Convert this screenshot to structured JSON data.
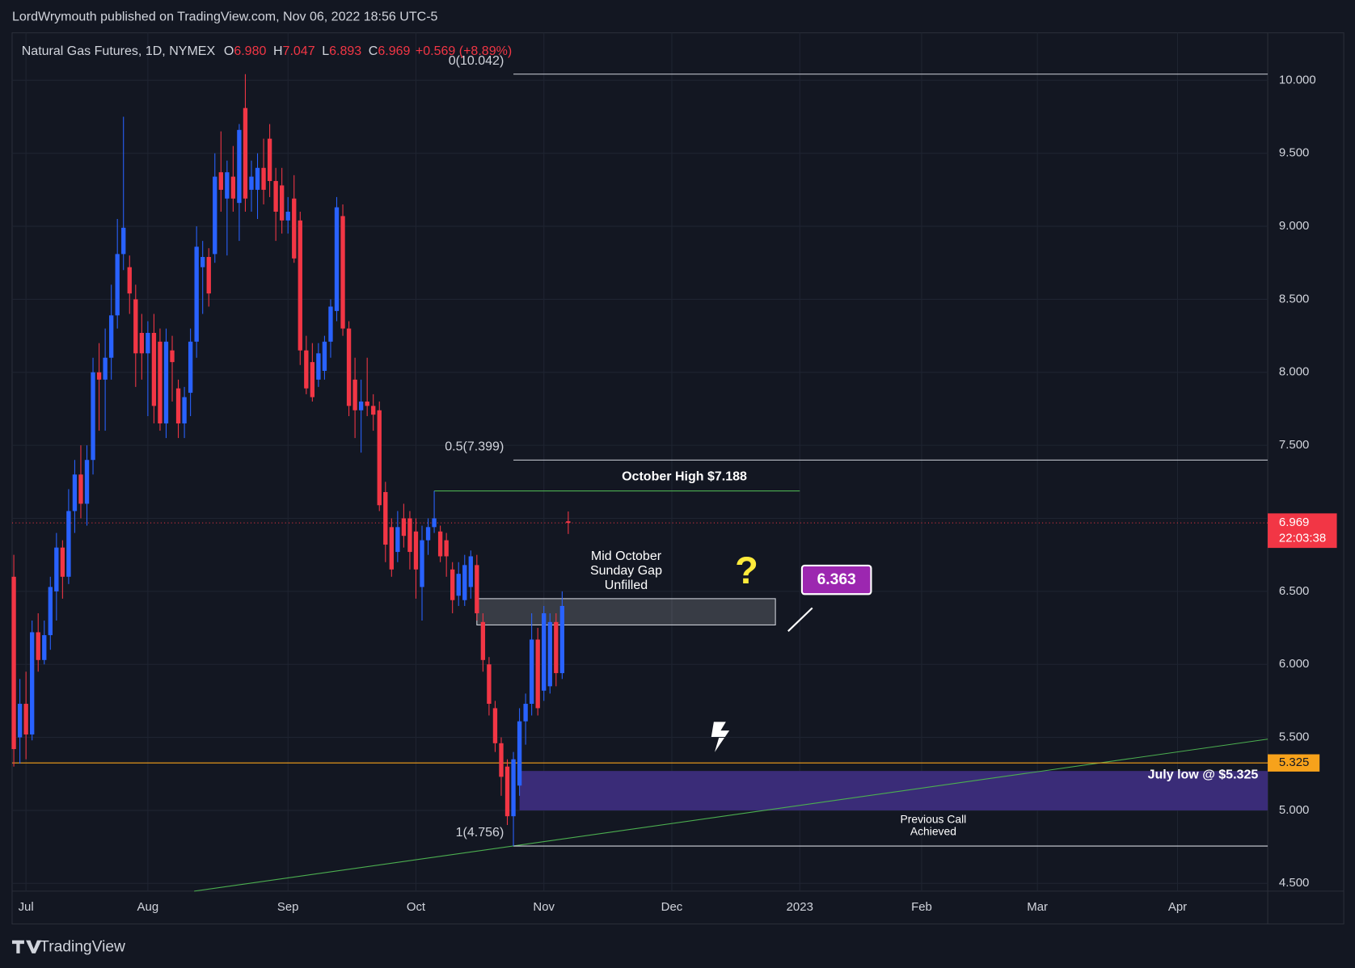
{
  "header": {
    "text": "LordWrymouth published on TradingView.com, Nov 06, 2022 18:56 UTC-5"
  },
  "footer": {
    "brand": "TradingView"
  },
  "chart_data": {
    "type": "candlestick",
    "title": "Natural Gas Futures, 1D, NYMEX",
    "legend_values": [
      {
        "label": "O",
        "value": "6.980"
      },
      {
        "label": "H",
        "value": "7.047"
      },
      {
        "label": "L",
        "value": "6.893"
      },
      {
        "label": "C",
        "value": "6.969"
      }
    ],
    "change": "+0.569 (+8.89%)",
    "open": [
      6.6,
      5.5,
      5.73,
      5.52,
      6.22,
      6.03,
      6.2,
      6.5,
      6.8,
      6.6,
      7.05,
      7.3,
      7.1,
      7.4,
      8.0,
      7.95,
      8.1,
      8.39,
      8.81,
      8.72,
      8.5,
      8.27,
      8.13,
      8.27,
      8.21,
      7.65,
      8.15,
      7.89,
      7.65,
      7.86,
      8.21,
      8.72,
      8.79,
      8.81,
      9.37,
      9.19,
      9.34,
      9.16,
      9.81,
      9.25,
      9.25,
      9.4,
      9.6,
      9.31,
      9.28,
      9.04,
      9.19,
      9.04,
      8.15,
      8.07,
      7.95,
      8.01,
      8.21,
      8.42,
      9.07,
      8.3,
      7.95,
      7.74,
      7.8,
      7.77,
      7.74,
      7.18,
      6.94,
      6.77,
      7.0,
      7.0,
      6.91,
      6.53,
      6.85,
      6.94,
      6.91,
      6.85,
      6.65,
      6.47,
      6.44,
      6.53,
      6.68,
      6.29,
      6.0,
      5.7,
      5.46,
      5.3,
      4.96,
      5.17,
      5.61,
      5.73,
      6.17,
      5.82,
      5.85,
      6.29,
      5.94,
      6.98
    ],
    "high": [
      6.75,
      5.9,
      5.95,
      6.3,
      6.35,
      6.3,
      6.6,
      6.9,
      6.85,
      7.2,
      7.4,
      7.5,
      7.5,
      8.1,
      8.2,
      8.3,
      8.6,
      9.05,
      9.75,
      8.8,
      8.6,
      8.4,
      8.35,
      8.4,
      8.3,
      8.3,
      8.25,
      7.95,
      7.9,
      8.3,
      9.0,
      8.9,
      8.85,
      9.5,
      9.65,
      9.45,
      9.55,
      9.7,
      10.042,
      9.45,
      9.5,
      9.6,
      9.7,
      9.4,
      9.4,
      9.2,
      9.35,
      9.1,
      8.25,
      8.2,
      8.2,
      8.25,
      8.5,
      9.2,
      9.15,
      8.35,
      8.1,
      7.95,
      8.1,
      7.85,
      7.8,
      7.25,
      7.0,
      7.05,
      7.1,
      7.05,
      7.0,
      6.95,
      7.0,
      7.188,
      6.95,
      6.9,
      6.7,
      6.7,
      6.75,
      6.78,
      6.75,
      6.35,
      6.05,
      5.75,
      5.5,
      5.35,
      5.4,
      5.7,
      5.8,
      6.35,
      6.25,
      6.4,
      6.35,
      6.35,
      6.5,
      7.047
    ],
    "low": [
      5.3,
      5.32,
      5.35,
      5.48,
      5.95,
      6.0,
      6.1,
      6.3,
      6.45,
      6.55,
      6.9,
      7.0,
      6.95,
      7.3,
      7.6,
      7.6,
      7.95,
      8.3,
      8.7,
      8.4,
      7.9,
      7.95,
      7.7,
      7.65,
      7.6,
      7.55,
      7.8,
      7.55,
      7.55,
      7.7,
      8.1,
      8.4,
      8.45,
      8.75,
      9.1,
      8.8,
      9.1,
      8.9,
      9.1,
      9.1,
      9.05,
      9.15,
      9.2,
      8.9,
      8.95,
      8.95,
      8.75,
      8.05,
      7.85,
      7.8,
      7.9,
      7.95,
      8.1,
      8.35,
      8.25,
      7.7,
      7.55,
      7.45,
      7.7,
      7.6,
      7.05,
      6.7,
      6.6,
      6.7,
      6.8,
      6.65,
      6.45,
      6.3,
      6.75,
      6.9,
      6.7,
      6.6,
      6.35,
      6.4,
      6.4,
      6.45,
      6.3,
      5.95,
      5.65,
      5.4,
      5.1,
      4.9,
      4.756,
      5.1,
      5.45,
      5.65,
      5.65,
      5.75,
      5.8,
      5.85,
      5.9,
      6.893
    ],
    "close": [
      5.42,
      5.73,
      5.52,
      6.22,
      6.03,
      6.2,
      6.53,
      6.8,
      6.6,
      7.05,
      7.3,
      7.1,
      7.4,
      8.0,
      7.95,
      8.1,
      8.39,
      8.81,
      8.99,
      8.54,
      8.13,
      8.13,
      8.27,
      7.77,
      7.65,
      8.21,
      8.07,
      7.65,
      7.83,
      8.21,
      8.86,
      8.79,
      8.54,
      9.34,
      9.25,
      9.37,
      9.19,
      9.66,
      9.19,
      9.34,
      9.4,
      9.25,
      9.31,
      9.1,
      9.04,
      9.1,
      8.78,
      8.15,
      7.89,
      7.83,
      8.13,
      8.21,
      8.45,
      9.13,
      8.3,
      7.77,
      7.74,
      7.8,
      7.77,
      7.71,
      7.09,
      6.82,
      6.65,
      6.94,
      6.88,
      6.77,
      6.65,
      6.85,
      6.94,
      7.0,
      6.74,
      6.74,
      6.44,
      6.62,
      6.68,
      6.74,
      6.35,
      6.03,
      5.73,
      5.46,
      5.23,
      4.96,
      5.35,
      5.61,
      5.73,
      6.17,
      5.7,
      6.35,
      6.29,
      5.94,
      6.4,
      6.969
    ],
    "up_color": "#2962ff",
    "down_color": "#f23645",
    "xlim": [
      -0.28,
      205.8
    ],
    "xticks": [
      {
        "value": 2,
        "label": "Jul"
      },
      {
        "value": 22,
        "label": "Aug"
      },
      {
        "value": 45,
        "label": "Sep"
      },
      {
        "value": 66,
        "label": "Oct"
      },
      {
        "value": 87,
        "label": "Nov"
      },
      {
        "value": 108,
        "label": "Dec"
      },
      {
        "value": 129,
        "label": "2023"
      },
      {
        "value": 149,
        "label": "Feb"
      },
      {
        "value": 168,
        "label": "Mar"
      },
      {
        "value": 191,
        "label": "Apr"
      }
    ],
    "ylim": [
      4.447,
      10.325
    ],
    "yticks": [
      {
        "value": 4.5,
        "label": "4.500"
      },
      {
        "value": 5,
        "label": "5.000"
      },
      {
        "value": 5.5,
        "label": "5.500"
      },
      {
        "value": 6,
        "label": "6.000"
      },
      {
        "value": 6.5,
        "label": "6.500"
      },
      {
        "value": 7,
        "label": "7.000"
      },
      {
        "value": 7.5,
        "label": "7.500"
      },
      {
        "value": 8,
        "label": "8.000"
      },
      {
        "value": 8.5,
        "label": "8.500"
      },
      {
        "value": 9,
        "label": "9.000"
      },
      {
        "value": 9.5,
        "label": "9.500"
      },
      {
        "value": 10,
        "label": "10.000"
      }
    ],
    "grid": true,
    "last_price": {
      "value": 6.969,
      "countdown": "22:03:38",
      "color": "#f23645"
    },
    "fib_levels": [
      {
        "label": "0(10.042)",
        "value": 10.042,
        "x_start": 82
      },
      {
        "label": "0.5(7.399)",
        "value": 7.399,
        "x_start": 82
      },
      {
        "label": "1(4.756)",
        "value": 4.756,
        "x_start": 82
      }
    ],
    "october_high": {
      "label": "October High $7.188",
      "value": 7.188,
      "x_start": 69,
      "x_end": 129,
      "color": "#4caf50"
    },
    "support": {
      "value": 5.325,
      "label": "July low @ $5.325",
      "color": "#f7a21b"
    },
    "gap_zone": {
      "lines": [
        "Mid October",
        "Sunday Gap",
        "Unfilled"
      ],
      "low": 6.27,
      "high": 6.45,
      "x_start": 76,
      "x_end": 125
    },
    "target_zone": {
      "lines": [
        "Previous Call",
        "Achieved"
      ],
      "low": 5.0,
      "high": 5.27,
      "x_start": 83,
      "color": "#3a2c78"
    },
    "trendline": {
      "x": [
        29.6,
        205.8
      ],
      "y": [
        4.447,
        5.488
      ],
      "color": "#4caf50"
    },
    "callout": {
      "value": 6.363
    },
    "question": "?"
  }
}
